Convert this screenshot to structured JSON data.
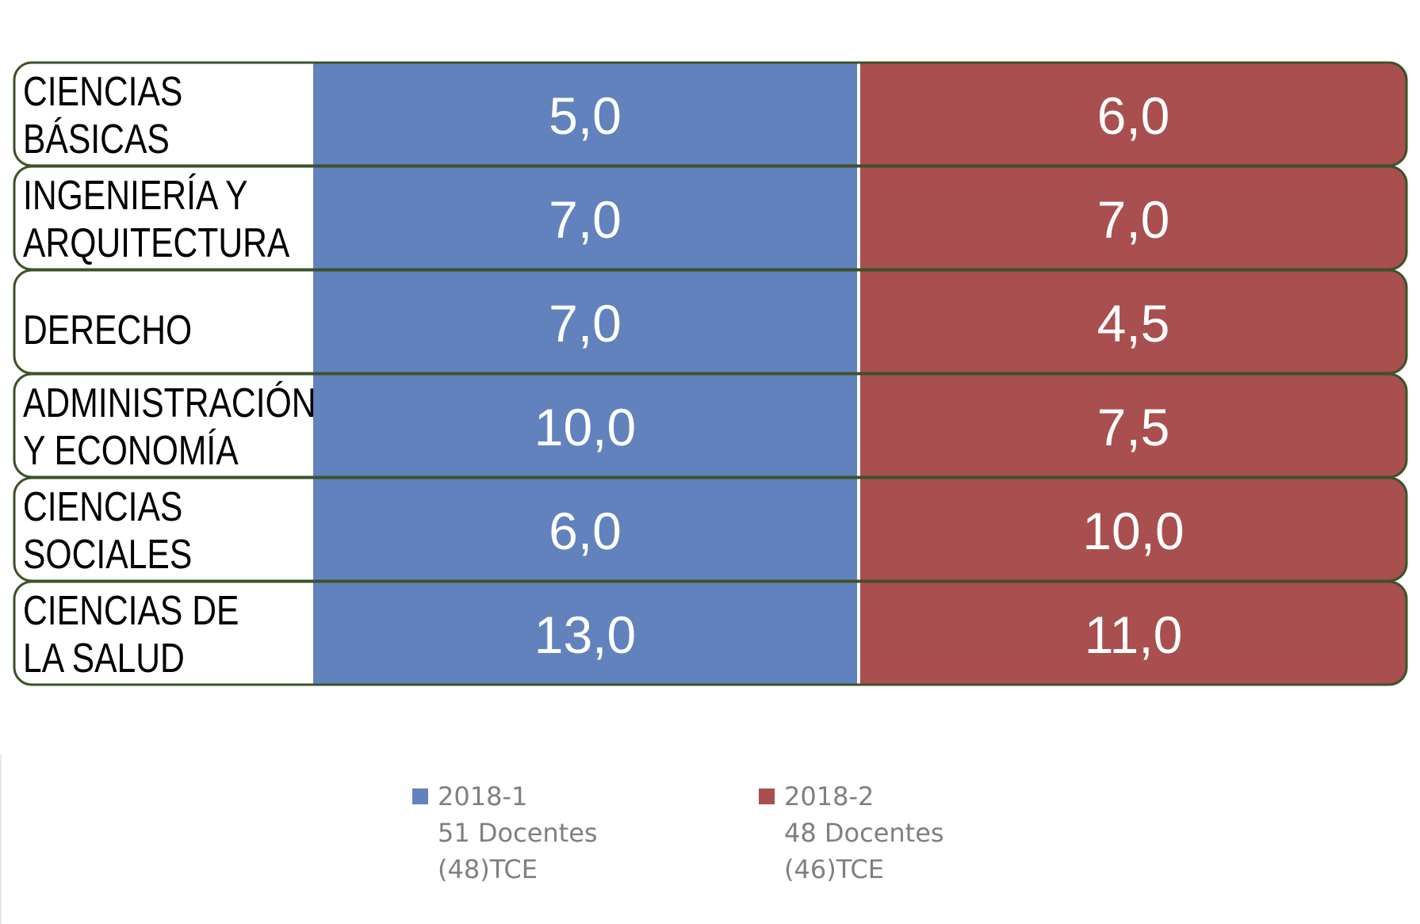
{
  "chart_data": {
    "type": "table",
    "categories": [
      [
        "CIENCIAS",
        "BÁSICAS"
      ],
      [
        "INGENIERÍA Y",
        "ARQUITECTURA"
      ],
      [
        "DERECHO"
      ],
      [
        "ADMINISTRACIÓN",
        "Y ECONOMÍA"
      ],
      [
        "CIENCIAS",
        "SOCIALES"
      ],
      [
        "CIENCIAS DE",
        "LA SALUD"
      ]
    ],
    "series": [
      {
        "name": "2018-1",
        "color": "#6182bd",
        "legend_lines": [
          "2018-1",
          "51 Docentes",
          "(48)TCE"
        ],
        "values": [
          5.0,
          7.0,
          7.0,
          10.0,
          6.0,
          13.0
        ],
        "labels": [
          "5,0",
          "7,0",
          "7,0",
          "10,0",
          "6,0",
          "13,0"
        ]
      },
      {
        "name": "2018-2",
        "color": "#a94f4f",
        "legend_lines": [
          "2018-2",
          "48 Docentes",
          "(46)TCE"
        ],
        "values": [
          6.0,
          7.0,
          4.5,
          7.5,
          10.0,
          11.0
        ],
        "labels": [
          "6,0",
          "7,0",
          "4,5",
          "7,5",
          "10,0",
          "11,0"
        ]
      }
    ],
    "legend_placement": "bottom-center",
    "border_color": "#3d5227"
  }
}
